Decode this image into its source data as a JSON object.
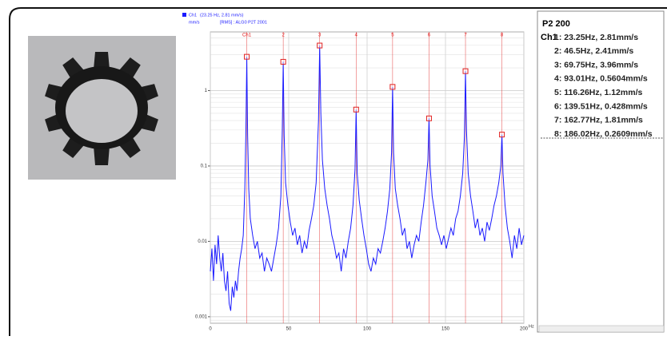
{
  "chart_data": {
    "type": "line",
    "log_y": true,
    "legend_detail": "(23.25 Hz, 2.81 mm/s)",
    "unit_label": "mm/s",
    "info_label": "[RMS] : ALG0 P2T 2001",
    "xlabel": "Hz",
    "xlim": [
      0,
      200
    ],
    "xticks": [
      0,
      50,
      100,
      150,
      200
    ],
    "ylim": [
      0.00082,
      6
    ],
    "yticks": [
      0.001,
      0.01,
      0.1,
      1
    ],
    "grid": true,
    "series": [
      {
        "name": "Ch1",
        "color": "#1a1aff",
        "x": [
          0,
          1,
          2,
          3,
          4,
          5,
          6,
          7,
          8,
          9,
          10,
          11,
          12,
          13,
          14,
          15,
          16,
          17,
          18,
          19,
          20,
          21,
          22,
          22.7,
          23.25,
          23.8,
          24.5,
          25.5,
          27,
          28.5,
          30,
          31.5,
          33,
          34.5,
          36,
          37.5,
          39,
          40.5,
          42,
          43.5,
          45,
          45.9,
          46.5,
          47.1,
          48,
          49.5,
          51,
          52.5,
          54,
          55.5,
          57,
          58.5,
          60,
          61.5,
          63,
          64.5,
          66,
          67.5,
          69,
          69.75,
          70.5,
          71.5,
          73,
          74.5,
          76,
          77.5,
          79,
          80.5,
          82,
          83.5,
          85,
          86.5,
          88,
          89.5,
          91,
          92.3,
          93.01,
          93.7,
          95,
          96.5,
          98,
          99.5,
          101,
          102.5,
          104,
          105.5,
          107,
          108.5,
          110,
          111.5,
          113,
          114.5,
          115.6,
          116.26,
          116.9,
          118,
          119.5,
          121,
          122.5,
          124,
          125.5,
          127,
          128.5,
          130,
          131.5,
          133,
          134.5,
          136,
          137.5,
          138.8,
          139.51,
          140.2,
          141.5,
          143,
          144.5,
          146,
          147.5,
          149,
          150.5,
          152,
          153.5,
          155,
          156.5,
          158,
          159.5,
          161,
          162.1,
          162.77,
          163.4,
          164.5,
          166,
          167.5,
          169,
          170.5,
          172,
          173.5,
          175,
          176.5,
          178,
          179.5,
          181,
          182.5,
          184,
          185.3,
          186.02,
          186.7,
          188,
          189.5,
          191,
          192.5,
          194,
          195.5,
          197,
          198.5,
          200
        ],
        "values": [
          0.004,
          0.008,
          0.003,
          0.009,
          0.005,
          0.012,
          0.006,
          0.004,
          0.007,
          0.003,
          0.0022,
          0.004,
          0.0015,
          0.0012,
          0.0025,
          0.0018,
          0.003,
          0.0022,
          0.004,
          0.006,
          0.008,
          0.012,
          0.05,
          0.3,
          2.81,
          0.25,
          0.05,
          0.02,
          0.012,
          0.008,
          0.01,
          0.006,
          0.007,
          0.004,
          0.006,
          0.005,
          0.004,
          0.006,
          0.009,
          0.015,
          0.04,
          0.3,
          2.41,
          0.25,
          0.06,
          0.03,
          0.018,
          0.012,
          0.015,
          0.009,
          0.012,
          0.007,
          0.01,
          0.008,
          0.014,
          0.02,
          0.03,
          0.06,
          0.4,
          3.96,
          0.5,
          0.12,
          0.05,
          0.03,
          0.02,
          0.012,
          0.009,
          0.006,
          0.007,
          0.004,
          0.008,
          0.006,
          0.01,
          0.015,
          0.03,
          0.09,
          0.5604,
          0.08,
          0.035,
          0.02,
          0.012,
          0.008,
          0.005,
          0.004,
          0.006,
          0.005,
          0.008,
          0.007,
          0.01,
          0.015,
          0.025,
          0.05,
          0.15,
          1.12,
          0.15,
          0.05,
          0.03,
          0.02,
          0.012,
          0.015,
          0.008,
          0.01,
          0.006,
          0.009,
          0.012,
          0.01,
          0.018,
          0.03,
          0.06,
          0.12,
          0.428,
          0.1,
          0.04,
          0.025,
          0.015,
          0.012,
          0.009,
          0.012,
          0.008,
          0.011,
          0.015,
          0.012,
          0.02,
          0.025,
          0.04,
          0.08,
          0.25,
          1.81,
          0.3,
          0.08,
          0.04,
          0.025,
          0.015,
          0.02,
          0.012,
          0.015,
          0.01,
          0.018,
          0.014,
          0.02,
          0.03,
          0.04,
          0.06,
          0.1,
          0.2609,
          0.08,
          0.03,
          0.015,
          0.01,
          0.006,
          0.012,
          0.008,
          0.015,
          0.009,
          0.012
        ]
      }
    ],
    "peaks": {
      "color": "#e02020",
      "labels": [
        "Ch1",
        "2",
        "3",
        "4",
        "5",
        "6",
        "7",
        "8"
      ],
      "x": [
        23.25,
        46.5,
        69.75,
        93.01,
        116.26,
        139.51,
        162.77,
        186.02
      ],
      "values": [
        2.81,
        2.41,
        3.96,
        0.5604,
        1.12,
        0.428,
        1.81,
        0.2609
      ]
    }
  },
  "panel": {
    "title": "P2 200",
    "channel": "Ch1",
    "lines": [
      "1: 23.25Hz, 2.81mm/s",
      "2: 46.5Hz, 2.41mm/s",
      "3: 69.75Hz, 3.96mm/s",
      "4: 93.01Hz, 0.5604mm/s",
      "5: 116.26Hz, 1.12mm/s",
      "6: 139.51Hz, 0.428mm/s",
      "7: 162.77Hz, 1.81mm/s",
      "8: 186.02Hz, 0.2609mm/s"
    ]
  }
}
